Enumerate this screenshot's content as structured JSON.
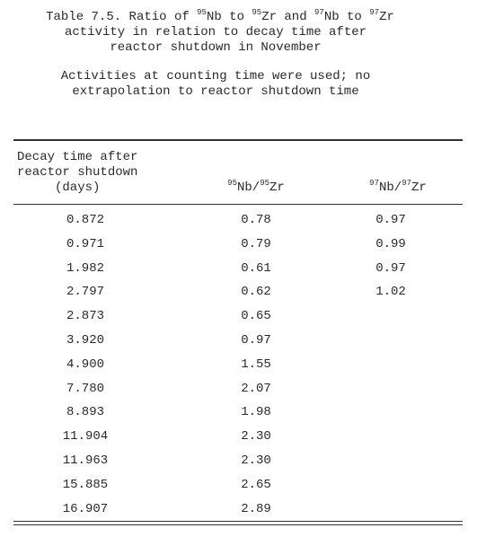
{
  "caption": {
    "line1_prefix": "Table 7.5.  Ratio of ",
    "line1_iso_a": "95",
    "line1_el_a": "Nb to ",
    "line1_iso_b": "95",
    "line1_el_b": "Zr and ",
    "line1_iso_c": "97",
    "line1_el_c": "Nb to ",
    "line1_iso_d": "97",
    "line1_el_d": "Zr",
    "line2": "activity in relation to decay time after",
    "line3": "reactor shutdown in November",
    "note_line1": "Activities at counting time were used; no",
    "note_line2": "extrapolation to reactor shutdown time"
  },
  "table": {
    "col1_header_lines": [
      "Decay time after",
      "reactor shutdown",
      "(days)"
    ],
    "col2_header": {
      "iso_a": "95",
      "el_a": "Nb/",
      "iso_b": "95",
      "el_b": "Zr"
    },
    "col3_header": {
      "iso_a": "97",
      "el_a": "Nb/",
      "iso_b": "97",
      "el_b": "Zr"
    },
    "rows": [
      {
        "decay": "0.872",
        "nb95_zr95": "0.78",
        "nb97_zr97": "0.97"
      },
      {
        "decay": "0.971",
        "nb95_zr95": "0.79",
        "nb97_zr97": "0.99"
      },
      {
        "decay": "1.982",
        "nb95_zr95": "0.61",
        "nb97_zr97": "0.97"
      },
      {
        "decay": "2.797",
        "nb95_zr95": "0.62",
        "nb97_zr97": "1.02"
      },
      {
        "decay": "2.873",
        "nb95_zr95": "0.65",
        "nb97_zr97": ""
      },
      {
        "decay": "3.920",
        "nb95_zr95": "0.97",
        "nb97_zr97": ""
      },
      {
        "decay": "4.900",
        "nb95_zr95": "1.55",
        "nb97_zr97": ""
      },
      {
        "decay": "7.780",
        "nb95_zr95": "2.07",
        "nb97_zr97": ""
      },
      {
        "decay": "8.893",
        "nb95_zr95": "1.98",
        "nb97_zr97": ""
      },
      {
        "decay": "11.904",
        "nb95_zr95": "2.30",
        "nb97_zr97": ""
      },
      {
        "decay": "11.963",
        "nb95_zr95": "2.30",
        "nb97_zr97": ""
      },
      {
        "decay": "15.885",
        "nb95_zr95": "2.65",
        "nb97_zr97": ""
      },
      {
        "decay": "16.907",
        "nb95_zr95": "2.89",
        "nb97_zr97": ""
      }
    ]
  }
}
